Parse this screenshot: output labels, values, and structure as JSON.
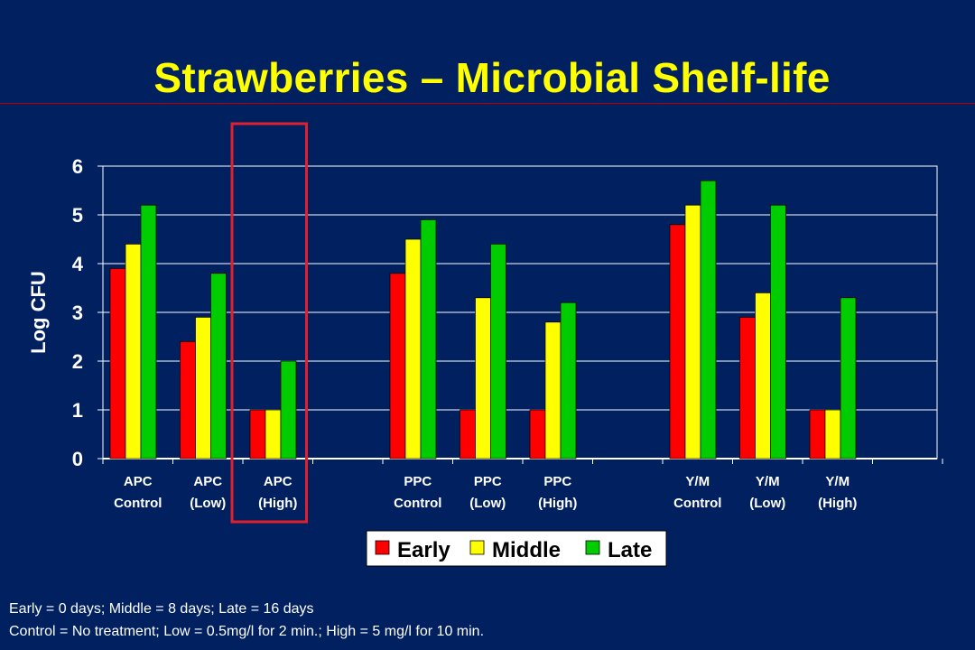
{
  "title": "Strawberries – Microbial Shelf-life",
  "footnotes": {
    "line1": "Early = 0 days; Middle = 8 days; Late = 16 days",
    "line2": "Control = No treatment; Low = 0.5mg/l for 2 min.; High = 5 mg/l for 10 min."
  },
  "colors": {
    "background": "#002060",
    "title": "#ffff00",
    "highlight_box": "#e0202a",
    "plot_area": "#ffffff",
    "early": "#ff0000",
    "middle": "#ffff00",
    "late": "#00cc00"
  },
  "chart_data": {
    "type": "bar",
    "title": "",
    "xlabel": "",
    "ylabel": "Log CFU",
    "ylim": [
      0,
      6
    ],
    "yticks": [
      0,
      1,
      2,
      3,
      4,
      5,
      6
    ],
    "grid": true,
    "legend_position": "bottom-center",
    "categories": [
      [
        "APC",
        "Control"
      ],
      [
        "APC",
        "(Low)"
      ],
      [
        "APC",
        "(High)"
      ],
      [
        "",
        ""
      ],
      [
        "PPC",
        "Control"
      ],
      [
        "PPC",
        "(Low)"
      ],
      [
        "PPC",
        "(High)"
      ],
      [
        "",
        ""
      ],
      [
        "Y/M",
        "Control"
      ],
      [
        "Y/M",
        "(Low)"
      ],
      [
        "Y/M",
        "(High)"
      ],
      [
        "",
        ""
      ]
    ],
    "series": [
      {
        "name": "Early",
        "color": "#ff0000",
        "values": [
          3.9,
          2.4,
          1.0,
          null,
          3.8,
          1.0,
          1.0,
          null,
          4.8,
          2.9,
          1.0,
          null
        ]
      },
      {
        "name": "Middle",
        "color": "#ffff00",
        "values": [
          4.4,
          2.9,
          1.0,
          null,
          4.5,
          3.3,
          2.8,
          null,
          5.2,
          3.4,
          1.0,
          null
        ]
      },
      {
        "name": "Late",
        "color": "#00cc00",
        "values": [
          5.2,
          3.8,
          2.0,
          null,
          4.9,
          4.4,
          3.2,
          null,
          5.7,
          5.2,
          3.3,
          null
        ]
      }
    ],
    "highlighted_category": "APC (High)"
  }
}
